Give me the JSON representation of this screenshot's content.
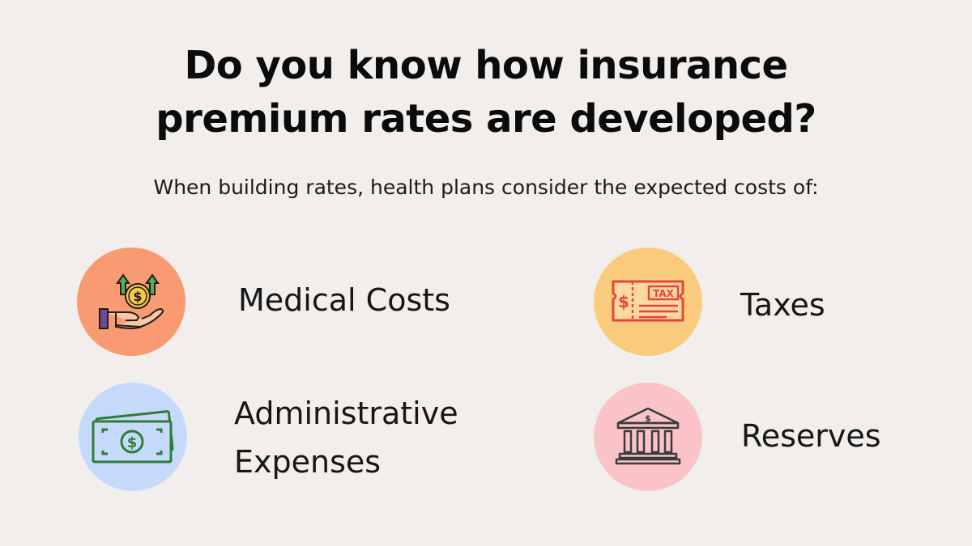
{
  "title_line1": "Do you know how insurance",
  "title_line2": "premium rates are developed?",
  "subtitle": "When building rates, health plans consider the expected costs of:",
  "items": [
    {
      "label": "Medical Costs",
      "icon": "hand-coin-arrows-icon",
      "color": "#f99a72"
    },
    {
      "label": "Taxes",
      "icon": "tax-ticket-icon",
      "color": "#fbcb7d"
    },
    {
      "label_line1": "Administrative",
      "label_line2": "Expenses",
      "icon": "cash-bill-icon",
      "color": "#c5dafa"
    },
    {
      "label": "Reserves",
      "icon": "bank-building-icon",
      "color": "#f9c3c8"
    }
  ],
  "icon_text": {
    "dollar": "$",
    "tax": "TAX"
  }
}
